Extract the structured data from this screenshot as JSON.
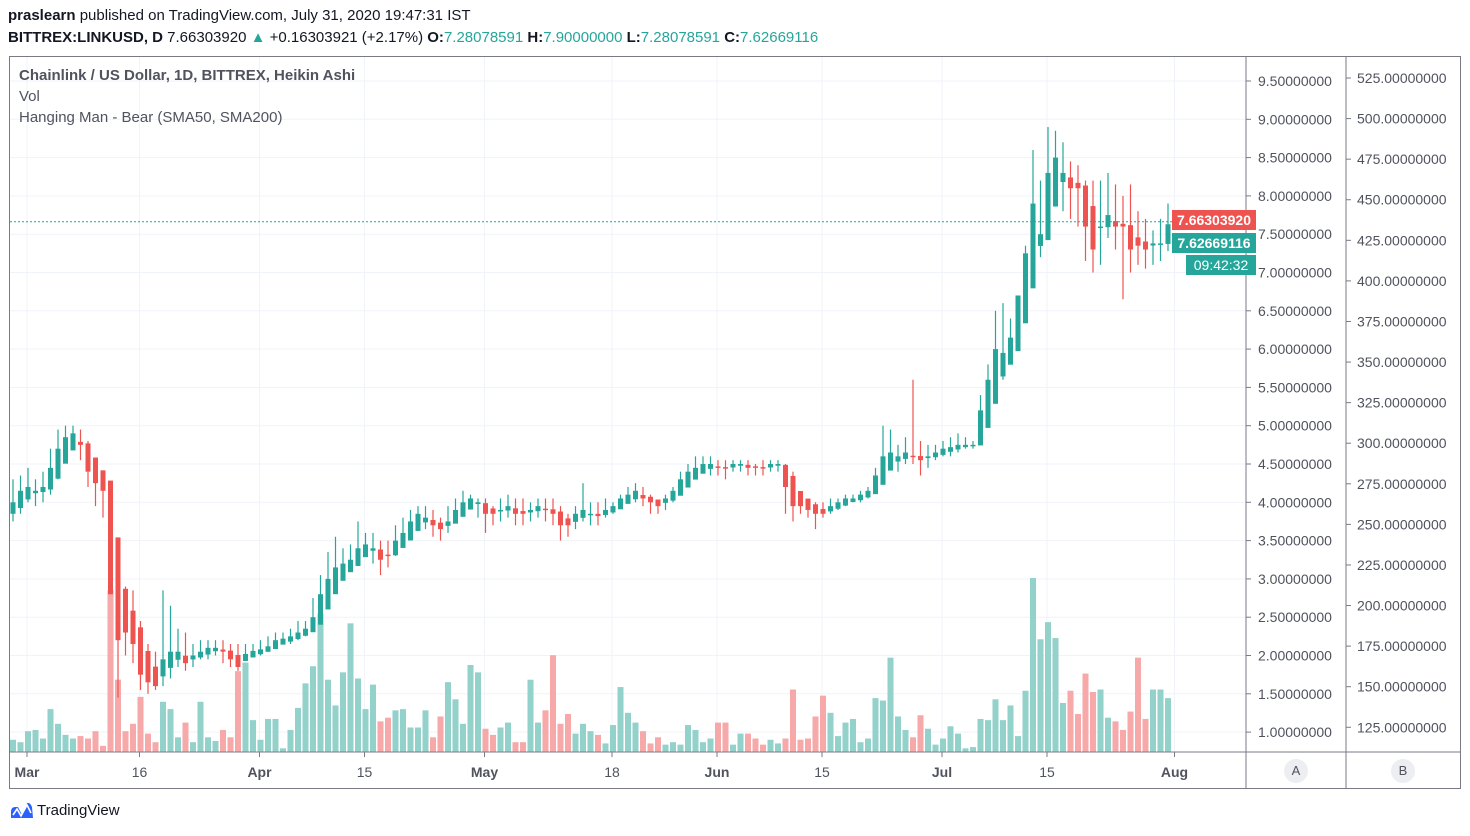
{
  "header": {
    "author": "praslearn",
    "published_text": "published on TradingView.com, July 31, 2020 19:47:31 IST",
    "symbol": "BITTREX:LINKUSD, D",
    "last_price": "7.66303920",
    "change": "+0.16303921 (+2.17%)",
    "open_label": "O:",
    "open": "7.28078591",
    "high_label": "H:",
    "high": "7.90000000",
    "low_label": "L:",
    "low": "7.28078591",
    "close_label": "C:",
    "close": "7.62669116"
  },
  "legend": {
    "title": "Chainlink / US Dollar, 1D, BITTREX, Heikin Ashi",
    "volume": "Vol",
    "indicator": "Hanging Man - Bear (SMA50, SMA200)"
  },
  "price_tags": {
    "last": "7.66303920",
    "close": "7.62669116",
    "countdown": "09:42:32"
  },
  "scale_buttons": {
    "a": "A",
    "b": "B"
  },
  "footer": {
    "logo_text": "TradingView"
  },
  "colors": {
    "up": "#26a69a",
    "down": "#ef5350",
    "vol_up": "#93d2cb",
    "vol_down": "#f6a9a8",
    "brand": "#2962ff"
  },
  "chart_data": {
    "type": "candlestick",
    "style": "Heikin Ashi",
    "interval": "1D",
    "start_date": "2020-02-28",
    "end_date": "2020-07-31",
    "ylim": [
      0.8,
      9.8
    ],
    "grid": true,
    "price_axis_ticks": [
      "9.50000000",
      "9.00000000",
      "8.50000000",
      "8.00000000",
      "7.50000000",
      "7.00000000",
      "6.50000000",
      "6.00000000",
      "5.50000000",
      "5.00000000",
      "4.50000000",
      "4.00000000",
      "3.50000000",
      "3.00000000",
      "2.50000000",
      "2.00000000",
      "1.50000000",
      "1.00000000"
    ],
    "secondary_axis_ticks": [
      "525.00000000",
      "500.00000000",
      "475.00000000",
      "450.00000000",
      "425.00000000",
      "400.00000000",
      "375.00000000",
      "350.00000000",
      "325.00000000",
      "300.00000000",
      "275.00000000",
      "250.00000000",
      "225.00000000",
      "200.00000000",
      "175.00000000",
      "150.00000000",
      "125.00000000"
    ],
    "time_axis_labels": [
      {
        "label": "Mar",
        "day": 2,
        "major": true
      },
      {
        "label": "16",
        "day": 17,
        "major": false
      },
      {
        "label": "Apr",
        "day": 33,
        "major": true
      },
      {
        "label": "15",
        "day": 47,
        "major": false
      },
      {
        "label": "May",
        "day": 63,
        "major": true
      },
      {
        "label": "18",
        "day": 80,
        "major": false
      },
      {
        "label": "Jun",
        "day": 94,
        "major": true
      },
      {
        "label": "15",
        "day": 108,
        "major": false
      },
      {
        "label": "Jul",
        "day": 124,
        "major": true
      },
      {
        "label": "15",
        "day": 138,
        "major": false
      },
      {
        "label": "Aug",
        "day": 155,
        "major": true
      }
    ],
    "first_open": 3.85,
    "close": [
      4.0,
      4.15,
      4.2,
      4.15,
      4.2,
      4.45,
      4.7,
      4.85,
      4.9,
      4.75,
      4.4,
      4.25,
      4.15,
      2.8,
      2.2,
      2.3,
      2.15,
      1.75,
      1.65,
      1.6,
      1.95,
      2.05,
      2.05,
      1.9,
      2.0,
      2.05,
      2.1,
      2.1,
      2.05,
      1.95,
      1.85,
      2.02,
      2.06,
      2.08,
      2.12,
      2.2,
      2.22,
      2.25,
      2.3,
      2.35,
      2.5,
      2.8,
      3.0,
      3.15,
      3.2,
      3.25,
      3.4,
      3.45,
      3.4,
      3.25,
      3.3,
      3.5,
      3.6,
      3.75,
      3.85,
      3.8,
      3.7,
      3.65,
      3.75,
      3.9,
      4.0,
      4.05,
      4.0,
      3.85,
      3.85,
      3.9,
      3.95,
      3.85,
      3.85,
      3.9,
      3.95,
      3.9,
      3.85,
      3.7,
      3.7,
      3.85,
      3.9,
      3.85,
      3.82,
      3.9,
      3.95,
      4.05,
      4.1,
      4.15,
      4.05,
      4.0,
      3.95,
      4.05,
      4.15,
      4.3,
      4.4,
      4.45,
      4.5,
      4.5,
      4.45,
      4.45,
      4.5,
      4.5,
      4.45,
      4.45,
      4.45,
      4.5,
      4.5,
      4.2,
      3.95,
      3.95,
      3.9,
      3.85,
      3.85,
      3.95,
      4.0,
      4.05,
      4.05,
      4.1,
      4.15,
      4.35,
      4.6,
      4.65,
      4.6,
      4.65,
      4.6,
      4.55,
      4.6,
      4.65,
      4.7,
      4.72,
      4.75,
      4.75,
      4.75,
      5.2,
      5.6,
      6.0,
      5.95,
      6.15,
      6.7,
      7.25,
      7.9,
      7.5,
      8.3,
      8.5,
      8.3,
      8.1,
      8.1,
      7.6,
      7.3,
      7.6,
      7.75,
      7.6,
      7.6,
      7.3,
      7.35,
      7.3,
      7.38,
      7.38,
      7.63
    ],
    "high": [
      4.3,
      4.35,
      4.45,
      4.3,
      4.4,
      4.7,
      4.95,
      5.0,
      5.0,
      4.95,
      4.8,
      4.55,
      4.35,
      4.2,
      3.5,
      2.9,
      2.85,
      2.45,
      2.15,
      2.05,
      2.85,
      2.65,
      2.35,
      2.3,
      2.15,
      2.2,
      2.2,
      2.2,
      2.2,
      2.15,
      2.15,
      2.15,
      2.15,
      2.2,
      2.25,
      2.3,
      2.3,
      2.35,
      2.45,
      2.45,
      2.75,
      3.05,
      3.35,
      3.55,
      3.4,
      3.45,
      3.75,
      3.6,
      3.6,
      3.5,
      3.5,
      3.7,
      3.8,
      3.9,
      3.95,
      3.95,
      3.9,
      3.8,
      3.95,
      4.05,
      4.15,
      4.1,
      4.05,
      4.05,
      3.95,
      4.05,
      4.1,
      4.05,
      4.05,
      4.0,
      4.05,
      4.05,
      4.05,
      3.95,
      3.85,
      3.95,
      4.25,
      4.0,
      4.0,
      4.05,
      4.0,
      4.1,
      4.2,
      4.25,
      4.2,
      4.1,
      4.0,
      4.1,
      4.2,
      4.4,
      4.5,
      4.6,
      4.6,
      4.6,
      4.55,
      4.55,
      4.55,
      4.55,
      4.55,
      4.5,
      4.55,
      4.55,
      4.55,
      4.5,
      4.4,
      4.1,
      4.0,
      4.0,
      4.0,
      4.05,
      4.05,
      4.1,
      4.1,
      4.15,
      4.2,
      4.45,
      5.0,
      4.95,
      4.75,
      4.85,
      5.6,
      4.8,
      4.75,
      4.75,
      4.8,
      4.85,
      4.9,
      4.85,
      4.8,
      5.4,
      5.8,
      6.5,
      6.6,
      6.4,
      6.3,
      7.35,
      8.6,
      8.2,
      8.9,
      8.85,
      8.7,
      8.45,
      8.4,
      8.2,
      8.2,
      8.2,
      8.3,
      8.15,
      8.0,
      8.15,
      7.8,
      7.7,
      7.55,
      7.7,
      7.9
    ],
    "low": [
      3.75,
      3.85,
      4.0,
      3.95,
      4.0,
      4.1,
      4.3,
      4.6,
      4.7,
      4.55,
      4.2,
      3.95,
      3.8,
      2.8,
      1.45,
      2.0,
      1.9,
      1.55,
      1.5,
      1.55,
      1.6,
      1.7,
      1.85,
      1.8,
      1.85,
      1.95,
      1.95,
      2.0,
      1.9,
      1.85,
      1.8,
      1.95,
      2.0,
      2.0,
      2.05,
      2.1,
      2.15,
      2.15,
      2.2,
      2.25,
      2.35,
      2.55,
      2.85,
      3.05,
      3.1,
      3.15,
      3.2,
      3.35,
      3.2,
      3.05,
      3.15,
      3.3,
      3.45,
      3.6,
      3.7,
      3.65,
      3.55,
      3.5,
      3.6,
      3.75,
      3.85,
      3.95,
      3.8,
      3.6,
      3.7,
      3.75,
      3.8,
      3.7,
      3.7,
      3.75,
      3.8,
      3.75,
      3.7,
      3.5,
      3.55,
      3.65,
      3.75,
      3.7,
      3.7,
      3.8,
      3.85,
      3.95,
      4.0,
      4.0,
      3.95,
      3.85,
      3.85,
      3.9,
      4.0,
      4.15,
      4.3,
      4.35,
      4.4,
      4.35,
      4.35,
      4.3,
      4.4,
      4.4,
      4.35,
      4.35,
      4.35,
      4.4,
      4.4,
      3.85,
      3.75,
      3.85,
      3.8,
      3.65,
      3.8,
      3.85,
      3.9,
      3.95,
      4.0,
      4.0,
      4.05,
      4.25,
      4.45,
      4.45,
      4.4,
      4.5,
      4.5,
      4.35,
      4.45,
      4.55,
      4.6,
      4.6,
      4.65,
      4.7,
      4.7,
      4.75,
      5.0,
      5.5,
      5.6,
      5.85,
      6.2,
      6.6,
      6.9,
      7.2,
      7.6,
      8.05,
      7.8,
      7.7,
      7.6,
      7.15,
      7.0,
      7.1,
      7.45,
      7.3,
      6.65,
      7.0,
      7.1,
      7.05,
      7.1,
      7.15,
      7.28
    ],
    "volume": [
      10,
      8,
      17,
      18,
      11,
      35,
      23,
      14,
      11,
      13,
      11,
      17,
      5,
      132,
      59,
      17,
      23,
      45,
      15,
      8,
      41,
      35,
      12,
      24,
      8,
      41,
      12,
      9,
      18,
      12,
      66,
      73,
      26,
      10,
      27,
      27,
      3,
      18,
      36,
      56,
      70,
      113,
      59,
      38,
      65,
      105,
      60,
      35,
      55,
      25,
      28,
      34,
      35,
      20,
      20,
      34,
      12,
      29,
      57,
      43,
      23,
      71,
      65,
      19,
      14,
      20,
      24,
      8,
      8,
      59,
      24,
      34,
      79,
      23,
      31,
      15,
      23,
      17,
      14,
      7,
      22,
      53,
      32,
      24,
      17,
      7,
      12,
      6,
      8,
      6,
      22,
      18,
      8,
      11,
      24,
      24,
      6,
      15,
      15,
      11,
      6,
      10,
      7,
      11,
      51,
      10,
      11,
      29,
      46,
      32,
      13,
      24,
      27,
      8,
      11,
      44,
      42,
      77,
      29,
      18,
      12,
      30,
      19,
      6,
      11,
      21,
      15,
      3,
      4,
      27,
      26,
      43,
      26,
      38,
      13,
      50,
      142,
      92,
      106,
      93,
      40,
      50,
      31,
      64,
      49,
      51,
      28,
      25,
      18,
      33,
      77,
      27,
      51,
      51,
      44
    ],
    "last_price_line": 7.6630392
  }
}
